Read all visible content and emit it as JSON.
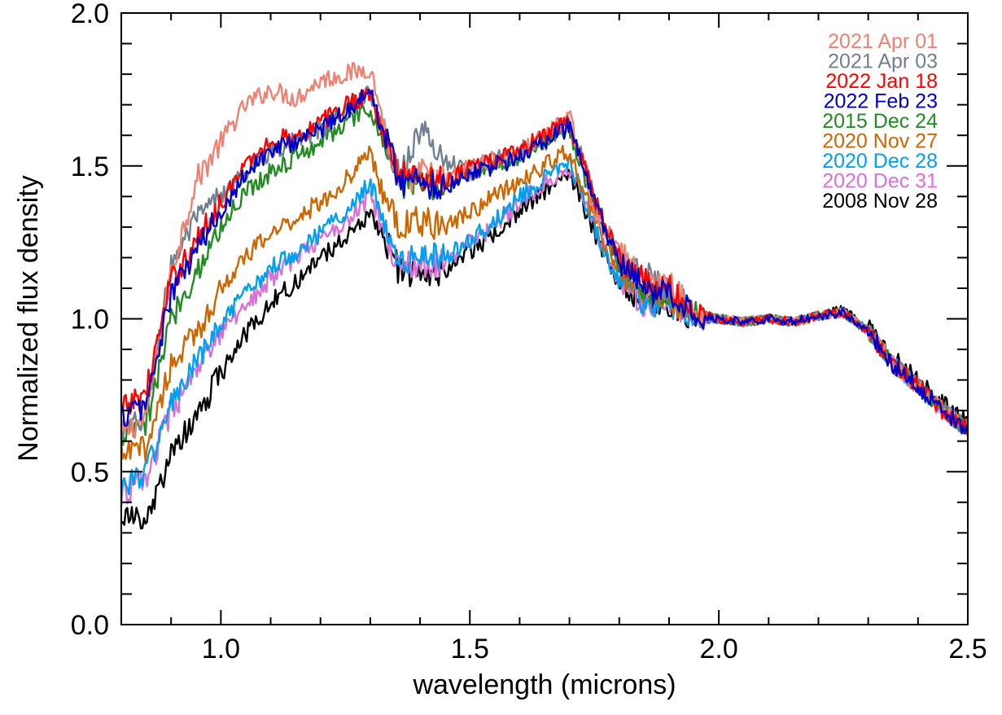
{
  "chart_data": {
    "type": "line",
    "xlabel": "wavelength (microns)",
    "ylabel": "Normalized flux density",
    "xlim": [
      0.8,
      2.5
    ],
    "ylim": [
      0.0,
      2.0
    ],
    "x_ticks": [
      {
        "value": 1.0,
        "label": "1.0"
      },
      {
        "value": 1.5,
        "label": "1.5"
      },
      {
        "value": 2.0,
        "label": "2.0"
      },
      {
        "value": 2.5,
        "label": "2.5"
      }
    ],
    "x_minor_step": 0.1,
    "y_ticks": [
      {
        "value": 0.0,
        "label": "0.0"
      },
      {
        "value": 0.5,
        "label": "0.5"
      },
      {
        "value": 1.0,
        "label": "1.0"
      },
      {
        "value": 1.5,
        "label": "1.5"
      },
      {
        "value": 2.0,
        "label": "2.0"
      }
    ],
    "y_minor_step": 0.1,
    "grid": false,
    "legend_position": "top-right",
    "x": [
      0.8,
      0.85,
      0.9,
      0.95,
      1.0,
      1.05,
      1.1,
      1.15,
      1.2,
      1.25,
      1.3,
      1.33,
      1.36,
      1.4,
      1.45,
      1.5,
      1.55,
      1.6,
      1.65,
      1.7,
      1.75,
      1.8,
      1.85,
      1.9,
      1.95,
      2.0,
      2.05,
      2.1,
      2.15,
      2.2,
      2.25,
      2.3,
      2.35,
      2.4,
      2.45,
      2.5
    ],
    "series": [
      {
        "name": "2021 Apr 01",
        "color": "#f08070",
        "values": [
          0.62,
          0.68,
          1.15,
          1.45,
          1.58,
          1.7,
          1.75,
          1.72,
          1.78,
          1.8,
          1.82,
          1.62,
          1.42,
          1.48,
          1.45,
          1.5,
          1.52,
          1.54,
          1.6,
          1.66,
          1.36,
          1.22,
          1.12,
          1.12,
          1.02,
          1.0,
          0.99,
          1.0,
          0.99,
          1.01,
          1.02,
          0.96,
          0.85,
          0.78,
          0.7,
          0.64
        ]
      },
      {
        "name": "2021 Apr 03",
        "color": "#708090",
        "values": [
          0.62,
          0.68,
          1.18,
          1.32,
          1.4,
          1.48,
          1.55,
          1.58,
          1.62,
          1.68,
          1.74,
          1.6,
          1.47,
          1.62,
          1.52,
          1.48,
          1.52,
          1.55,
          1.6,
          1.65,
          1.4,
          1.2,
          1.15,
          1.1,
          1.02,
          1.0,
          0.99,
          1.0,
          0.99,
          1.01,
          1.02,
          0.96,
          0.85,
          0.78,
          0.7,
          0.64
        ]
      },
      {
        "name": "2022 Jan 18",
        "color": "#ff0000",
        "values": [
          0.7,
          0.76,
          1.12,
          1.25,
          1.38,
          1.5,
          1.58,
          1.6,
          1.64,
          1.7,
          1.74,
          1.58,
          1.47,
          1.47,
          1.45,
          1.5,
          1.52,
          1.55,
          1.6,
          1.64,
          1.4,
          1.2,
          1.12,
          1.1,
          1.02,
          1.0,
          0.99,
          1.0,
          0.99,
          1.01,
          1.02,
          0.96,
          0.85,
          0.78,
          0.7,
          0.64
        ]
      },
      {
        "name": "2022 Feb 23",
        "color": "#0000c8",
        "values": [
          0.68,
          0.72,
          1.08,
          1.22,
          1.35,
          1.48,
          1.55,
          1.58,
          1.62,
          1.68,
          1.74,
          1.6,
          1.45,
          1.45,
          1.43,
          1.48,
          1.5,
          1.53,
          1.58,
          1.63,
          1.38,
          1.18,
          1.1,
          1.08,
          1.02,
          1.0,
          0.99,
          1.0,
          0.99,
          1.01,
          1.02,
          0.96,
          0.85,
          0.78,
          0.7,
          0.64
        ]
      },
      {
        "name": "2015 Dec 24",
        "color": "#228b22",
        "values": [
          0.62,
          0.65,
          1.0,
          1.15,
          1.3,
          1.42,
          1.48,
          1.53,
          1.58,
          1.64,
          1.68,
          1.56,
          1.43,
          1.45,
          1.43,
          1.48,
          1.5,
          1.53,
          1.58,
          1.62,
          1.37,
          1.18,
          1.1,
          1.08,
          1.02,
          1.0,
          0.99,
          1.0,
          0.99,
          1.01,
          1.02,
          0.96,
          0.85,
          0.78,
          0.7,
          0.64
        ]
      },
      {
        "name": "2020 Nov 27",
        "color": "#cd6600",
        "values": [
          0.55,
          0.58,
          0.85,
          0.95,
          1.1,
          1.2,
          1.28,
          1.33,
          1.38,
          1.45,
          1.55,
          1.38,
          1.3,
          1.32,
          1.3,
          1.35,
          1.4,
          1.45,
          1.5,
          1.55,
          1.32,
          1.15,
          1.08,
          1.06,
          1.02,
          1.0,
          0.99,
          1.0,
          0.99,
          1.01,
          1.02,
          0.96,
          0.85,
          0.78,
          0.7,
          0.64
        ]
      },
      {
        "name": "2020 Dec 28",
        "color": "#00a0f0",
        "values": [
          0.45,
          0.5,
          0.72,
          0.85,
          0.98,
          1.08,
          1.17,
          1.22,
          1.28,
          1.35,
          1.45,
          1.3,
          1.18,
          1.2,
          1.2,
          1.26,
          1.32,
          1.4,
          1.46,
          1.52,
          1.3,
          1.12,
          1.05,
          1.05,
          1.0,
          1.0,
          0.99,
          1.0,
          0.99,
          1.01,
          1.02,
          0.96,
          0.85,
          0.78,
          0.7,
          0.64
        ]
      },
      {
        "name": "2020 Dec 31",
        "color": "#da70d6",
        "values": [
          0.42,
          0.48,
          0.7,
          0.82,
          0.95,
          1.05,
          1.13,
          1.2,
          1.26,
          1.32,
          1.4,
          1.28,
          1.17,
          1.18,
          1.18,
          1.25,
          1.3,
          1.38,
          1.45,
          1.5,
          1.3,
          1.12,
          1.05,
          1.05,
          1.0,
          1.0,
          0.99,
          1.0,
          0.99,
          1.01,
          1.02,
          0.96,
          0.85,
          0.78,
          0.7,
          0.64
        ]
      },
      {
        "name": "2008 Nov 28",
        "color": "#000000",
        "values": [
          0.36,
          0.33,
          0.55,
          0.68,
          0.82,
          0.95,
          1.05,
          1.12,
          1.2,
          1.27,
          1.34,
          1.26,
          1.15,
          1.15,
          1.16,
          1.22,
          1.28,
          1.35,
          1.42,
          1.48,
          1.28,
          1.12,
          1.06,
          1.05,
          1.0,
          1.0,
          0.99,
          1.0,
          0.99,
          1.01,
          1.03,
          0.97,
          0.87,
          0.8,
          0.72,
          0.66
        ]
      }
    ]
  }
}
